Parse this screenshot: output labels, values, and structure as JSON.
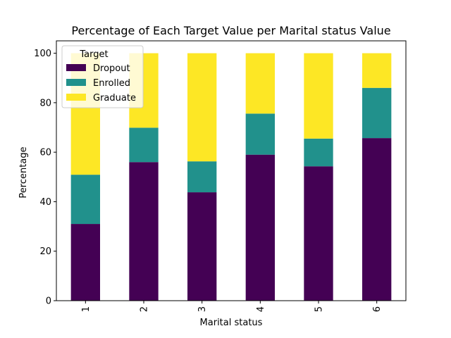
{
  "chart_data": {
    "type": "bar",
    "stacked": true,
    "title": "Percentage of Each Target Value per Marital status Value",
    "xlabel": "Marital status",
    "ylabel": "Percentage",
    "ylim": [
      0,
      105
    ],
    "yticks": [
      0,
      20,
      40,
      60,
      80,
      100
    ],
    "categories": [
      "1",
      "2",
      "3",
      "4",
      "5",
      "6"
    ],
    "x_tick_rotation": "vertical",
    "legend": {
      "title": "Target",
      "placement": "upper-left"
    },
    "grid": false,
    "series": [
      {
        "name": "Dropout",
        "color": "#440154",
        "values": [
          31.0,
          56.0,
          43.8,
          59.0,
          54.3,
          65.7
        ]
      },
      {
        "name": "Enrolled",
        "color": "#21918c",
        "values": [
          19.9,
          13.9,
          12.5,
          16.6,
          11.2,
          20.3
        ]
      },
      {
        "name": "Graduate",
        "color": "#fde725",
        "values": [
          49.1,
          30.1,
          43.7,
          24.4,
          34.5,
          14.0
        ]
      }
    ]
  }
}
